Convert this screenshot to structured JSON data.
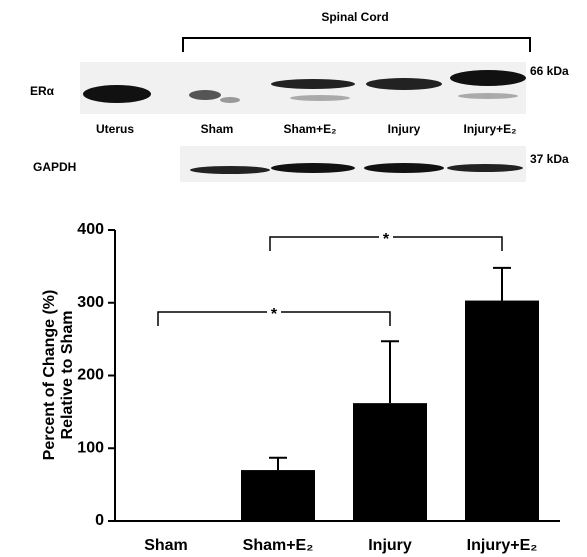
{
  "blot": {
    "header": "Spinal Cord",
    "rows": [
      {
        "label": "ERα",
        "size": "66 kDa"
      },
      {
        "label": "GAPDH",
        "size": "37 kDa"
      }
    ],
    "lanes": [
      "Uterus",
      "Sham",
      "Sham+E₂",
      "Injury",
      "Injury+E₂"
    ]
  },
  "chart_data": {
    "type": "bar",
    "y_label": [
      "Percent of Change (%)",
      "Relative to Sham"
    ],
    "categories": [
      "Sham",
      "Sham+E₂",
      "Injury",
      "Injury+E₂"
    ],
    "values": [
      0,
      70,
      162,
      303
    ],
    "errors": [
      0,
      17,
      85,
      45
    ],
    "color": "#000000",
    "ylim": [
      0,
      400
    ],
    "yticks": [
      0,
      100,
      200,
      300,
      400
    ],
    "grid": false,
    "annotations": [
      "*",
      "*"
    ]
  }
}
